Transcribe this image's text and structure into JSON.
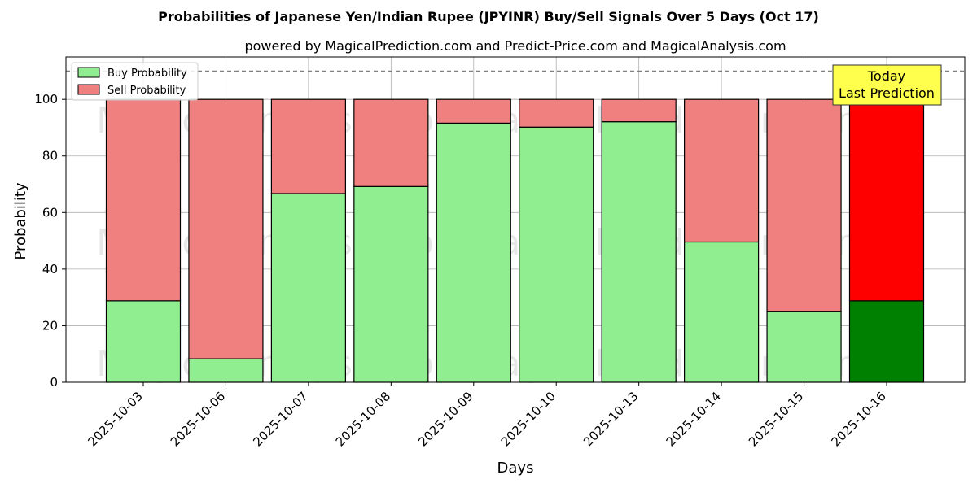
{
  "chart_data": {
    "type": "bar",
    "stacked": true,
    "title": "Probabilities of Japanese Yen/Indian Rupee (JPYINR) Buy/Sell Signals Over 5 Days (Oct 17)",
    "subtitle": "powered by MagicalPrediction.com and Predict-Price.com and MagicalAnalysis.com",
    "xlabel": "Days",
    "ylabel": "Probability",
    "ylim": [
      0,
      115
    ],
    "yticks": [
      0,
      20,
      40,
      60,
      80,
      100
    ],
    "categories": [
      "2025-10-03",
      "2025-10-06",
      "2025-10-07",
      "2025-10-08",
      "2025-10-09",
      "2025-10-10",
      "2025-10-13",
      "2025-10-14",
      "2025-10-15",
      "2025-10-16"
    ],
    "series": [
      {
        "name": "Buy Probability",
        "color": "#90ee90",
        "highlight_color": "#008000",
        "values": [
          28.8,
          8.3,
          66.7,
          69.2,
          91.6,
          90.2,
          92.1,
          49.6,
          25.1,
          28.8
        ]
      },
      {
        "name": "Sell Probability",
        "color": "#f08080",
        "highlight_color": "#ff0000",
        "values": [
          71.2,
          91.7,
          33.3,
          30.8,
          8.4,
          9.8,
          7.9,
          50.4,
          74.9,
          71.2
        ]
      }
    ],
    "highlight_index": 9,
    "reference_line": {
      "y": 110,
      "style": "dashed",
      "color": "#808080"
    },
    "grid": true,
    "legend": {
      "position": "top-left"
    },
    "annotation": {
      "lines": [
        "Today",
        "Last Prediction"
      ],
      "box_color": "#ffff4d",
      "target_index": 9
    },
    "watermarks": [
      "MagicalAnalysis.com",
      "MagicalPrediction.com"
    ]
  }
}
